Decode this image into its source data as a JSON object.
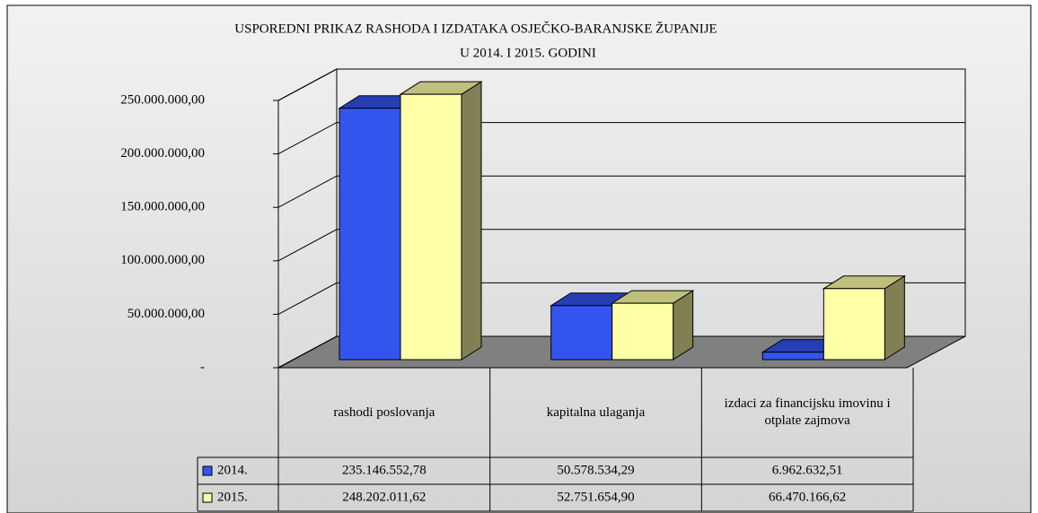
{
  "chart_data": {
    "type": "bar3d",
    "title": [
      "USPOREDNI PRIKAZ RASHODA I IZDATAKA OSJEČKO-BARANJSKE ŽUPANIJE",
      "U 2014. I 2015. GODINI"
    ],
    "categories": [
      "rashodi poslovanja",
      "kapitalna ulaganja",
      "izdaci za financijsku imovinu i otplate zajmova"
    ],
    "series": [
      {
        "name": "2014.",
        "color": "#3355ee",
        "values": [
          235146552.78,
          50578534.29,
          6962632.51
        ],
        "value_labels": [
          "235.146.552,78",
          "50.578.534,29",
          "6.962.632,51"
        ]
      },
      {
        "name": "2015.",
        "color": "#ffffa8",
        "values": [
          248202011.62,
          52751654.9,
          66470166.62
        ],
        "value_labels": [
          "248.202.011,62",
          "52.751.654,90",
          "66.470.166,62"
        ]
      }
    ],
    "ylim": [
      0,
      250000000
    ],
    "yticks": [
      {
        "value": 0,
        "label": "-"
      },
      {
        "value": 50000000,
        "label": "50.000.000,00"
      },
      {
        "value": 100000000,
        "label": "100.000.000,00"
      },
      {
        "value": 150000000,
        "label": "150.000.000,00"
      },
      {
        "value": 200000000,
        "label": "200.000.000,00"
      },
      {
        "value": 250000000,
        "label": "250.000.000,00"
      }
    ],
    "grid": true
  }
}
